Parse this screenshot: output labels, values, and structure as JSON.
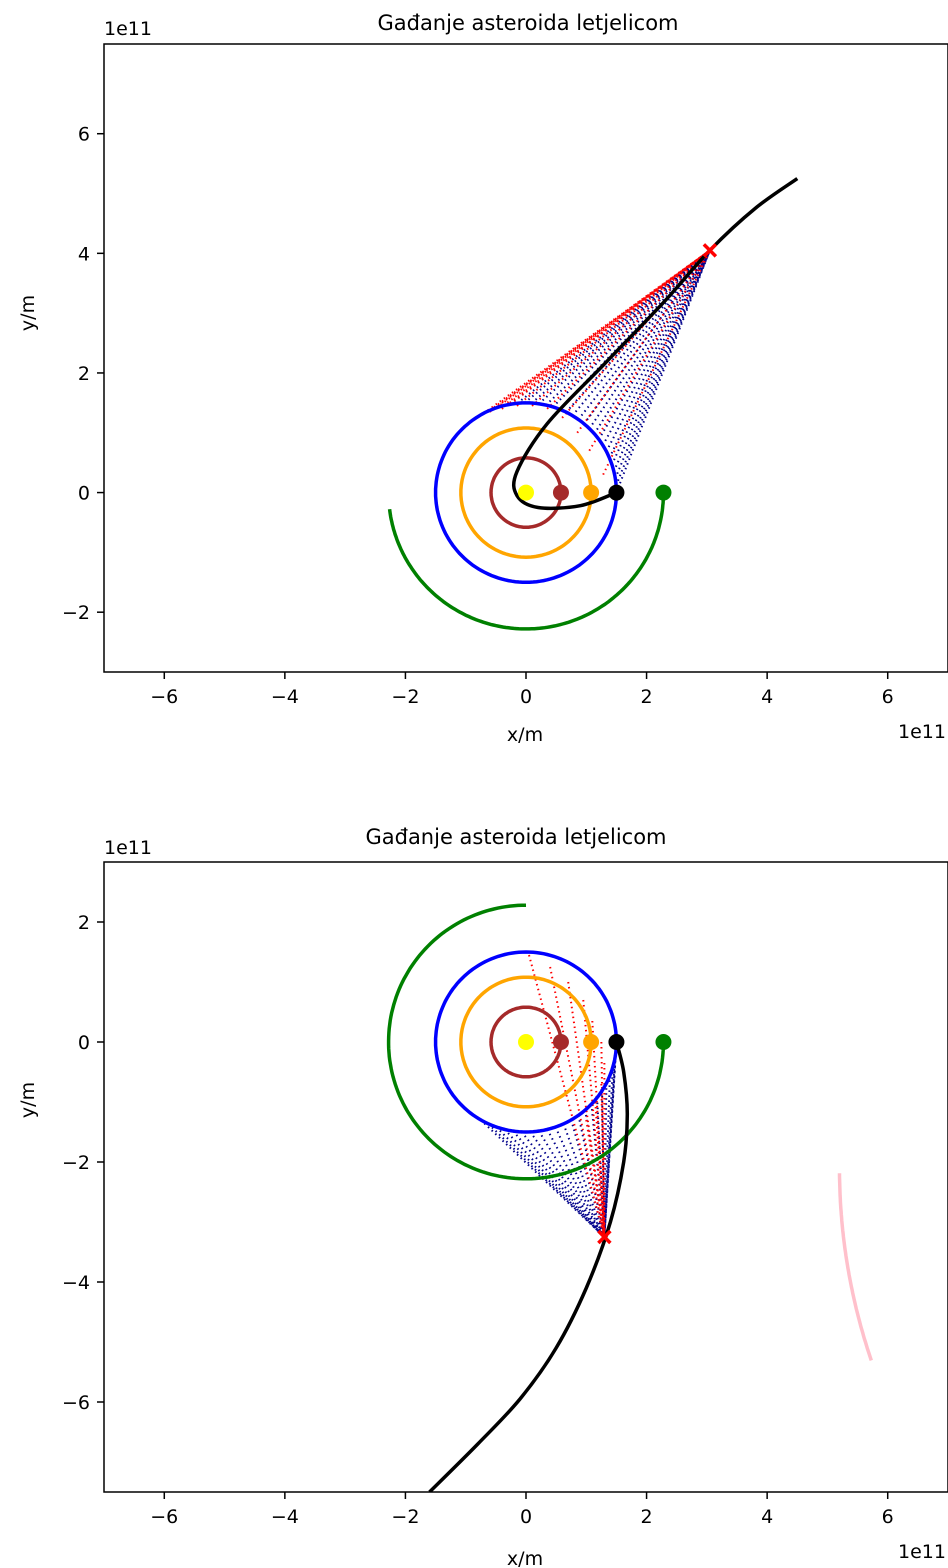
{
  "chart_data": [
    {
      "type": "line",
      "title": "Gađanje asteroida letjelicom",
      "xlabel": "x/m",
      "ylabel": "y/m",
      "x_offset_label": "1e11",
      "y_offset_label": "1e11",
      "xlim": [
        -7,
        7
      ],
      "ylim": [
        -3,
        7.5
      ],
      "xticks": [
        -6,
        -4,
        -2,
        0,
        2,
        4,
        6
      ],
      "yticks": [
        -2,
        0,
        2,
        4,
        6
      ],
      "xtick_labels": [
        "−6",
        "−4",
        "−2",
        "0",
        "2",
        "4",
        "6"
      ],
      "ytick_labels": [
        "−2",
        "0",
        "2",
        "4",
        "6"
      ],
      "grid": false,
      "colors": {
        "sun": "#ffff00",
        "mercury": "#a52a2a",
        "venus": "#ffa500",
        "earth": "#0000ff",
        "mars": "#008000",
        "asteroid": "#000000",
        "probe": "#ff0000",
        "earth_lines": "#00008b",
        "probe_lines": "#ff0000"
      },
      "orbits": [
        {
          "radius": 0.58,
          "start_deg": 0,
          "end_deg": 360,
          "color": "#a52a2a"
        },
        {
          "radius": 1.08,
          "start_deg": 0,
          "end_deg": 360,
          "color": "#ffa500"
        },
        {
          "radius": 1.5,
          "start_deg": 0,
          "end_deg": 360,
          "color": "#0000ff"
        },
        {
          "radius": 2.28,
          "start_deg": 0,
          "end_deg": -173,
          "color": "#008000"
        }
      ],
      "bodies": [
        {
          "x": 0,
          "y": 0,
          "color": "#ffff00"
        },
        {
          "x": 0.58,
          "y": 0,
          "color": "#a52a2a"
        },
        {
          "x": 1.08,
          "y": 0,
          "color": "#ffa500"
        },
        {
          "x": 1.5,
          "y": 0,
          "color": "#000000"
        },
        {
          "x": 2.28,
          "y": 0,
          "color": "#008000"
        }
      ],
      "asteroid_path": [
        [
          1.5,
          0
        ],
        [
          0.9,
          -0.22
        ],
        [
          0.2,
          -0.25
        ],
        [
          -0.15,
          -0.05
        ],
        [
          -0.15,
          0.35
        ],
        [
          0.35,
          1.15
        ],
        [
          1.3,
          2.15
        ],
        [
          2.3,
          3.2
        ],
        [
          3.05,
          4.05
        ],
        [
          3.8,
          4.75
        ],
        [
          4.5,
          5.25
        ]
      ],
      "sightline_target": [
        3.05,
        4.05
      ],
      "earth_sight_arc": {
        "radius": 1.5,
        "start_deg": 0,
        "end_deg": 100
      },
      "probe_sight_arc": {
        "radius": 1.5,
        "start_deg": 100,
        "end_deg": 118
      },
      "probe_sight_points": [
        [
          1.28,
          0.3
        ],
        [
          1.05,
          0.7
        ],
        [
          0.85,
          1.0
        ],
        [
          0.6,
          1.25
        ],
        [
          0.35,
          1.4
        ],
        [
          0.1,
          1.45
        ],
        [
          -0.15,
          1.45
        ],
        [
          -0.4,
          1.4
        ],
        [
          -0.6,
          1.35
        ]
      ],
      "impact_marker": {
        "x": 3.05,
        "y": 4.05,
        "color": "#ff0000"
      },
      "extra_arcs": []
    },
    {
      "type": "line",
      "title": "Gađanje asteroida letjelicom",
      "xlabel": "x/m",
      "ylabel": "y/m",
      "x_offset_label": "1e11",
      "y_offset_label": "1e11",
      "xlim": [
        -7,
        7
      ],
      "ylim": [
        -7.5,
        3
      ],
      "xticks": [
        -6,
        -4,
        -2,
        0,
        2,
        4,
        6
      ],
      "yticks": [
        -6,
        -4,
        -2,
        0,
        2
      ],
      "xtick_labels": [
        "−6",
        "−4",
        "−2",
        "0",
        "2",
        "4",
        "6"
      ],
      "ytick_labels": [
        "−6",
        "−4",
        "−2",
        "0",
        "2"
      ],
      "grid": false,
      "colors": {
        "sun": "#ffff00",
        "mercury": "#a52a2a",
        "venus": "#ffa500",
        "earth": "#0000ff",
        "mars": "#008000",
        "asteroid": "#000000",
        "probe": "#ff0000",
        "earth_lines": "#00008b",
        "probe_lines": "#ff0000",
        "far_arc": "#ffc0cb"
      },
      "orbits": [
        {
          "radius": 0.58,
          "start_deg": 0,
          "end_deg": 360,
          "color": "#a52a2a"
        },
        {
          "radius": 1.08,
          "start_deg": 0,
          "end_deg": 360,
          "color": "#ffa500"
        },
        {
          "radius": 1.5,
          "start_deg": 0,
          "end_deg": 360,
          "color": "#0000ff"
        },
        {
          "radius": 2.28,
          "start_deg": 0,
          "end_deg": -270,
          "color": "#008000"
        }
      ],
      "bodies": [
        {
          "x": 0,
          "y": 0,
          "color": "#ffff00"
        },
        {
          "x": 0.58,
          "y": 0,
          "color": "#a52a2a"
        },
        {
          "x": 1.08,
          "y": 0,
          "color": "#ffa500"
        },
        {
          "x": 1.5,
          "y": 0,
          "color": "#000000"
        },
        {
          "x": 2.28,
          "y": 0,
          "color": "#008000"
        }
      ],
      "asteroid_path": [
        [
          1.5,
          0
        ],
        [
          1.62,
          -0.5
        ],
        [
          1.68,
          -1.2
        ],
        [
          1.62,
          -2.0
        ],
        [
          1.4,
          -3.0
        ],
        [
          1.0,
          -4.1
        ],
        [
          0.5,
          -5.1
        ],
        [
          -0.1,
          -5.95
        ],
        [
          -0.8,
          -6.7
        ],
        [
          -1.6,
          -7.5
        ]
      ],
      "sightline_target": [
        1.3,
        -3.25
      ],
      "earth_sight_arc": {
        "radius": 1.5,
        "start_deg": -120,
        "end_deg": 0
      },
      "probe_sight_points": [
        [
          0.05,
          1.45
        ],
        [
          0.4,
          1.25
        ],
        [
          0.7,
          1.0
        ],
        [
          0.95,
          0.7
        ],
        [
          1.1,
          0.35
        ],
        [
          1.25,
          0.0
        ],
        [
          1.3,
          -0.35
        ],
        [
          1.25,
          -0.7
        ],
        [
          1.15,
          -1.0
        ],
        [
          1.0,
          -1.3
        ]
      ],
      "impact_marker": {
        "x": 1.3,
        "y": -3.25,
        "color": "#ff0000"
      },
      "extra_arcs": [
        {
          "cx": 15.2,
          "cy": -2.1,
          "radius": 10.0,
          "start_deg": 198.7,
          "end_deg": 180.5,
          "color": "#ffc0cb"
        }
      ]
    }
  ]
}
